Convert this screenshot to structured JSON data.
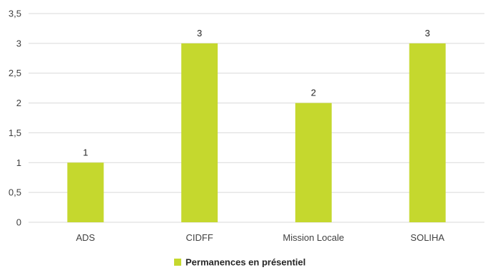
{
  "chart_data": {
    "type": "bar",
    "categories": [
      "ADS",
      "CIDFF",
      "Mission Locale",
      "SOLIHA"
    ],
    "series": [
      {
        "name": "Permanences en présentiel",
        "values": [
          1,
          3,
          2,
          3
        ],
        "color": "#c5d82e"
      }
    ],
    "data_labels": [
      "1",
      "3",
      "2",
      "3"
    ],
    "ylim": [
      0,
      3.5
    ],
    "y_ticks": [
      "0",
      "0,5",
      "1",
      "1,5",
      "2",
      "2,5",
      "3",
      "3,5"
    ],
    "grid": true,
    "legend_position": "bottom",
    "gridline_color": "#d9d9d9"
  }
}
